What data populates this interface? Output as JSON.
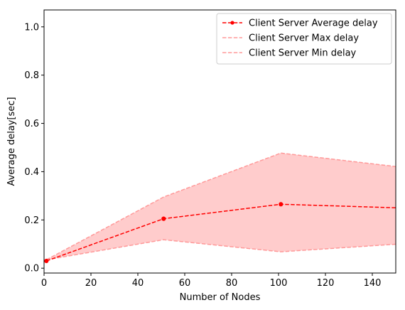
{
  "chart_data": {
    "type": "line",
    "title": "",
    "xlabel": "Number of Nodes",
    "ylabel": "Average delay[sec]",
    "xlim": [
      0,
      150
    ],
    "ylim": [
      -0.02,
      1.07
    ],
    "xticks": [
      0,
      20,
      40,
      60,
      80,
      100,
      120,
      140
    ],
    "yticks": [
      0.0,
      0.2,
      0.4,
      0.6,
      0.8,
      1.0
    ],
    "xtick_labels": [
      "0",
      "20",
      "40",
      "60",
      "80",
      "100",
      "120",
      "140"
    ],
    "ytick_labels": [
      "0.0",
      "0.2",
      "0.4",
      "0.6",
      "0.8",
      "1.0"
    ],
    "grid": false,
    "legend_position": "top-right",
    "series": [
      {
        "name": "Client Server Average delay",
        "x": [
          1,
          51,
          101,
          151
        ],
        "y": [
          0.03,
          0.205,
          0.265,
          0.25
        ],
        "color": "#ff0000",
        "style": "dashed",
        "marker": "circle"
      },
      {
        "name": "Client Server Max delay",
        "x": [
          1,
          51,
          101,
          151
        ],
        "y": [
          0.035,
          0.295,
          0.477,
          0.42
        ],
        "color": "#ff9999",
        "style": "dashed",
        "marker": "none"
      },
      {
        "name": "Client Server Min delay",
        "x": [
          1,
          51,
          101,
          151
        ],
        "y": [
          0.035,
          0.118,
          0.068,
          0.1
        ],
        "color": "#ff9999",
        "style": "dashed",
        "marker": "none"
      }
    ],
    "band": {
      "between": [
        "Client Server Min delay",
        "Client Server Max delay"
      ],
      "color": "#ffcccc"
    }
  }
}
